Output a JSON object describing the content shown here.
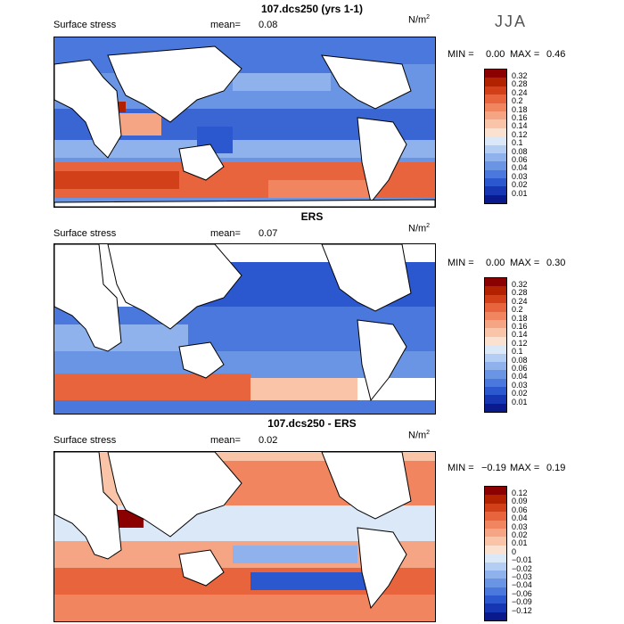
{
  "season": "JJA",
  "panels": [
    {
      "title": "107.dcs250 (yrs 1-1)",
      "field_label": "Surface stress",
      "mean_label": "mean=",
      "mean_value": "0.08",
      "units": "N/m",
      "units_exp": "2",
      "min_label": "MIN =",
      "min_value": "0.00",
      "max_label": "MAX =",
      "max_value": "0.46",
      "colorbar": {
        "labels": [
          "0.32",
          "0.28",
          "0.24",
          "0.2",
          "0.18",
          "0.16",
          "0.14",
          "0.12",
          "0.1",
          "0.08",
          "0.06",
          "0.04",
          "0.03",
          "0.02",
          "0.01"
        ],
        "colors": [
          "#8b0000",
          "#b22200",
          "#d2401a",
          "#e8643c",
          "#f0855f",
          "#f6a584",
          "#f9c4a8",
          "#fbe2d0",
          "#dbe8f8",
          "#b4cdf2",
          "#8fb2ec",
          "#6a95e4",
          "#4a78dc",
          "#2b57cf",
          "#1636b4",
          "#0a1a8c"
        ]
      }
    },
    {
      "title": "ERS",
      "field_label": "Surface stress",
      "mean_label": "mean=",
      "mean_value": "0.07",
      "units": "N/m",
      "units_exp": "2",
      "min_label": "MIN =",
      "min_value": "0.00",
      "max_label": "MAX =",
      "max_value": "0.30",
      "colorbar": {
        "labels": [
          "0.32",
          "0.28",
          "0.24",
          "0.2",
          "0.18",
          "0.16",
          "0.14",
          "0.12",
          "0.1",
          "0.08",
          "0.06",
          "0.04",
          "0.03",
          "0.02",
          "0.01"
        ],
        "colors": [
          "#8b0000",
          "#b22200",
          "#d2401a",
          "#e8643c",
          "#f0855f",
          "#f6a584",
          "#f9c4a8",
          "#fbe2d0",
          "#dbe8f8",
          "#b4cdf2",
          "#8fb2ec",
          "#6a95e4",
          "#4a78dc",
          "#2b57cf",
          "#1636b4",
          "#0a1a8c"
        ]
      }
    },
    {
      "title": "107.dcs250 - ERS",
      "field_label": "Surface stress",
      "mean_label": "mean=",
      "mean_value": "0.02",
      "units": "N/m",
      "units_exp": "2",
      "min_label": "MIN =",
      "min_value": "−0.19",
      "max_label": "MAX =",
      "max_value": "0.19",
      "colorbar": {
        "labels": [
          "0.12",
          "0.09",
          "0.06",
          "0.04",
          "0.03",
          "0.02",
          "0.01",
          "0",
          "−0.01",
          "−0.02",
          "−0.03",
          "−0.04",
          "−0.06",
          "−0.09",
          "−0.12"
        ],
        "colors": [
          "#8b0000",
          "#b22200",
          "#d2401a",
          "#e8643c",
          "#f0855f",
          "#f6a584",
          "#f9c4a8",
          "#fbe2d0",
          "#dbe8f8",
          "#b4cdf2",
          "#8fb2ec",
          "#6a95e4",
          "#4a78dc",
          "#2b57cf",
          "#1636b4",
          "#0a1a8c"
        ]
      }
    }
  ]
}
